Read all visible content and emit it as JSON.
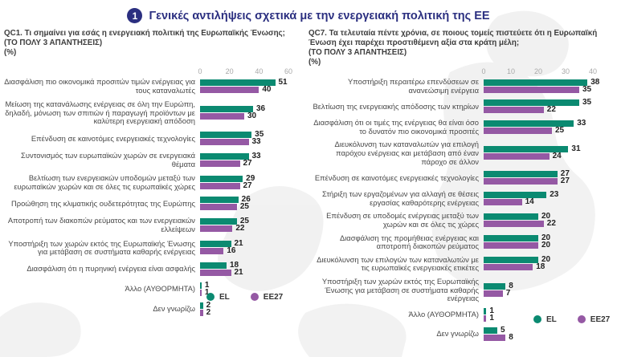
{
  "page": {
    "badge": "1",
    "title": "Γενικές αντιλήψεις σχετικά με την ενεργειακή πολιτική της ΕΕ"
  },
  "colors": {
    "el": "#0B8A71",
    "ee27": "#9559A4",
    "title_blue": "#2B2F80"
  },
  "legend": {
    "el_label": "EL",
    "ee27_label": "EE27"
  },
  "chart_data": [
    {
      "type": "bar",
      "orientation": "horizontal",
      "title": "QC1. Τι σημαίνει για εσάς η ενεργειακή πολιτική της Ευρωπαϊκής Ένωσης;",
      "subtitle": "(ΤΟ ΠΟΛΥ 3 ΑΠΑΝΤΗΣΕΙΣ)",
      "unit": "(%)",
      "axis_ticks": [
        0,
        20,
        40,
        60
      ],
      "axis_max": 60,
      "legend_position": "bottom-right",
      "grid": false,
      "categories": [
        "Διασφάλιση πιο οικονομικά προσιτών τιμών ενέργειας για τους καταναλωτές",
        "Μείωση της κατανάλωσης ενέργειας σε όλη την Ευρώπη, δηλαδή, μόνωση των σπιτιών ή παραγωγή προϊόντων με καλύτερη ενεργειακή απόδοση",
        "Επένδυση σε καινοτόμες ενεργειακές τεχνολογίες",
        "Συντονισμός των ευρωπαϊκών χωρών σε ενεργειακά θέματα",
        "Βελτίωση των ενεργειακών υποδομών μεταξύ των ευρωπαϊκών χωρών και σε όλες τις ευρωπαϊκές χώρες",
        "Προώθηση της κλιματικής ουδετερότητας της Ευρώπης",
        "Αποτροπή των διακοπών ρεύματος και των ενεργειακών ελλείψεων",
        "Υποστήριξη των χωρών εκτός της Ευρωπαϊκής Ένωσης για μετάβαση σε συστήματα καθαρής ενέργειας",
        "Διασφάλιση ότι η πυρηνική ενέργεια είναι ασφαλής",
        "Άλλο (ΑΥΘΟΡΜΗΤΑ)",
        "Δεν γνωρίζω"
      ],
      "series": [
        {
          "name": "EL",
          "values": [
            51,
            36,
            35,
            33,
            29,
            26,
            25,
            21,
            18,
            1,
            2
          ]
        },
        {
          "name": "EE27",
          "values": [
            40,
            30,
            33,
            27,
            27,
            25,
            22,
            16,
            21,
            1,
            2
          ]
        }
      ]
    },
    {
      "type": "bar",
      "orientation": "horizontal",
      "title": "QC7. Τα τελευταία πέντε χρόνια, σε ποιους τομείς πιστεύετε ότι η Ευρωπαϊκή Ένωση έχει παρέχει προστιθέμενη αξία στα κράτη μέλη;",
      "subtitle": "(ΤΟ ΠΟΛΥ 3 ΑΠΑΝΤΗΣΕΙΣ)",
      "unit": "(%)",
      "axis_ticks": [
        0,
        10,
        20,
        30,
        40
      ],
      "axis_max": 40,
      "legend_position": "bottom-right",
      "grid": false,
      "categories": [
        "Υποστήριξη περαιτέρω επενδύσεων σε ανανεώσιμη ενέργεια",
        "Βελτίωση της ενεργειακής απόδοσης των κτηρίων",
        "Διασφάλιση ότι οι τιμές της ενέργειας θα είναι όσο το δυνατόν πιο οικονομικά προσιτές",
        "Διευκόλυνση των καταναλωτών για επιλογή παρόχου ενέργειας και μετάβαση από έναν πάροχο σε άλλον",
        "Επένδυση σε καινοτόμες ενεργειακές τεχνολογίες",
        "Στήριξη των εργαζομένων για αλλαγή σε θέσεις εργασίας καθαρότερης ενέργειας",
        "Επένδυση σε υποδομές ενέργειας μεταξύ των χωρών και σε όλες τις χώρες",
        "Διασφάλιση της προμήθειας ενέργειας και αποτροπή διακοπών ρεύματος",
        "Διευκόλυνση των επιλογών των καταναλωτών με τις ευρωπαϊκές ενεργειακές ετικέτες",
        "Υποστήριξη των χωρών εκτός της Ευρωπαϊκής Ένωσης για μετάβαση σε συστήματα καθαρής ενέργειας",
        "Άλλο (ΑΥΘΟΡΜΗΤΑ)",
        "Δεν γνωρίζω"
      ],
      "series": [
        {
          "name": "EL",
          "values": [
            38,
            35,
            33,
            31,
            27,
            23,
            20,
            20,
            20,
            8,
            1,
            5
          ]
        },
        {
          "name": "EE27",
          "values": [
            35,
            22,
            25,
            24,
            27,
            14,
            22,
            20,
            18,
            7,
            1,
            8
          ]
        }
      ]
    }
  ]
}
